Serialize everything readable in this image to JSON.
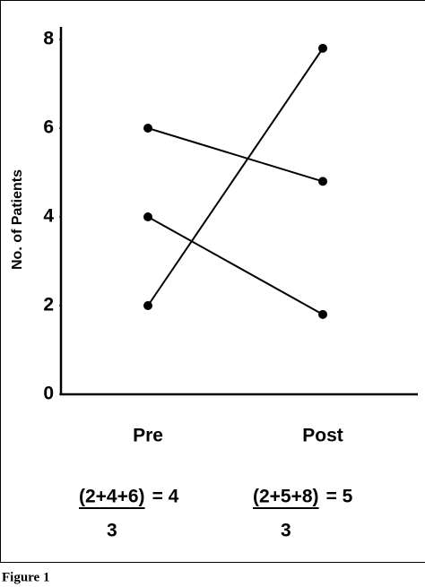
{
  "chart_data": {
    "type": "line",
    "y_label": "No. of Patients",
    "categories": [
      "Pre",
      "Post"
    ],
    "series": [
      {
        "color": "#000000",
        "values": [
          6,
          4.8
        ]
      },
      {
        "color": "#000000",
        "values": [
          4,
          1.8
        ]
      },
      {
        "color": "#000000",
        "values": [
          2,
          7.8
        ]
      }
    ],
    "ylim": [
      0,
      8
    ],
    "yticks": [
      0,
      2,
      4,
      6,
      8
    ],
    "annotations": [
      {
        "numerator": "(2+4+6)",
        "result": "= 4",
        "denominator": "3"
      },
      {
        "numerator": "(2+5+8)",
        "result": "= 5",
        "denominator": "3"
      }
    ],
    "caption": "Figure 1"
  }
}
